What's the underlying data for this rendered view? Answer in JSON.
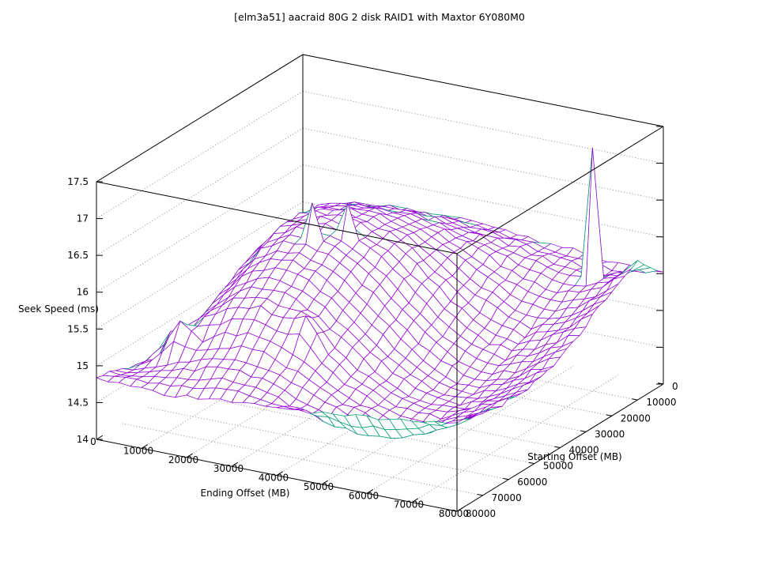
{
  "title": "[elm3a51] aacraid 80G 2 disk RAID1 with Maxtor 6Y080M0",
  "chart_data": {
    "type": "surface3d-wireframe",
    "title": "[elm3a51] aacraid 80G 2 disk RAID1 with Maxtor 6Y080M0",
    "xlabel": "Ending Offset (MB)",
    "ylabel": "Starting Offset (MB)",
    "zlabel": "Seek Speed (ms)",
    "xlim": [
      0,
      80000
    ],
    "ylim": [
      0,
      80000
    ],
    "zlim": [
      14,
      17.5
    ],
    "x_ticks": [
      0,
      10000,
      20000,
      30000,
      40000,
      50000,
      60000,
      70000,
      80000
    ],
    "y_ticks": [
      0,
      10000,
      20000,
      30000,
      40000,
      50000,
      60000,
      70000,
      80000
    ],
    "z_ticks": [
      14,
      14.5,
      15,
      15.5,
      16,
      16.5,
      17,
      17.5
    ],
    "grid": "dotted",
    "hidden3d": true,
    "surface_color": "#9400d3",
    "underside_color": "#009e73",
    "x_values": [
      0,
      5000,
      10000,
      15000,
      20000,
      25000,
      30000,
      35000,
      40000,
      45000,
      50000,
      55000,
      60000,
      65000,
      70000,
      75000,
      80000
    ],
    "y_values": [
      0,
      5000,
      10000,
      15000,
      20000,
      25000,
      30000,
      35000,
      40000,
      45000,
      50000,
      55000,
      60000,
      65000,
      70000,
      75000,
      80000
    ],
    "z_rows_by_y": [
      [
        14.05,
        14.85,
        15.3,
        15.5,
        15.6,
        15.65,
        15.7,
        15.7,
        15.68,
        15.65,
        15.62,
        15.6,
        15.58,
        15.55,
        15.52,
        15.5,
        15.5
      ],
      [
        14.08,
        15.0,
        15.45,
        15.65,
        15.75,
        15.8,
        15.82,
        15.8,
        15.76,
        15.72,
        15.68,
        15.62,
        15.58,
        15.52,
        15.48,
        15.55,
        15.7
      ],
      [
        14.1,
        15.1,
        15.6,
        15.8,
        15.9,
        15.95,
        15.95,
        15.92,
        15.86,
        15.8,
        15.72,
        15.64,
        15.56,
        15.5,
        17.3,
        15.6,
        15.88
      ],
      [
        14.12,
        15.15,
        15.7,
        15.95,
        16.05,
        16.08,
        16.06,
        16.0,
        15.92,
        15.82,
        15.68,
        15.55,
        15.45,
        15.4,
        15.45,
        15.58,
        15.82
      ],
      [
        14.15,
        15.18,
        15.78,
        16.05,
        16.15,
        16.18,
        16.15,
        16.06,
        15.95,
        15.8,
        15.6,
        15.45,
        15.32,
        15.25,
        15.32,
        15.48,
        15.7
      ],
      [
        14.18,
        15.16,
        15.8,
        16.1,
        16.22,
        16.25,
        16.2,
        16.1,
        15.95,
        15.75,
        15.52,
        15.35,
        15.2,
        15.12,
        15.22,
        15.38,
        15.58
      ],
      [
        14.2,
        15.12,
        15.78,
        16.1,
        16.25,
        16.28,
        16.22,
        16.1,
        15.92,
        15.68,
        15.42,
        15.22,
        15.08,
        15.02,
        15.12,
        15.28,
        15.45
      ],
      [
        14.25,
        15.08,
        15.72,
        16.08,
        16.22,
        16.26,
        16.6,
        16.05,
        15.85,
        15.58,
        15.3,
        15.1,
        14.96,
        14.92,
        15.02,
        15.18,
        15.32
      ],
      [
        14.3,
        15.02,
        15.64,
        16.0,
        16.18,
        16.65,
        16.12,
        15.95,
        15.72,
        15.45,
        15.18,
        14.98,
        14.86,
        14.82,
        14.92,
        15.08,
        15.22
      ],
      [
        14.38,
        14.96,
        15.54,
        15.88,
        16.05,
        16.08,
        16.0,
        15.82,
        15.58,
        15.32,
        15.05,
        14.88,
        14.76,
        14.75,
        14.85,
        15.0,
        15.15
      ],
      [
        14.45,
        14.92,
        15.44,
        15.74,
        15.92,
        15.95,
        15.86,
        15.68,
        15.44,
        15.18,
        14.95,
        14.8,
        14.7,
        14.7,
        14.8,
        14.95,
        15.1
      ],
      [
        14.52,
        14.88,
        15.34,
        15.6,
        15.78,
        15.82,
        15.72,
        15.54,
        15.32,
        15.08,
        14.88,
        14.74,
        14.66,
        14.67,
        14.77,
        14.92,
        15.07
      ],
      [
        14.6,
        15.1,
        15.24,
        15.48,
        15.62,
        15.66,
        15.58,
        15.68,
        15.2,
        14.98,
        14.82,
        14.7,
        14.64,
        14.66,
        14.77,
        14.93,
        15.08
      ],
      [
        14.68,
        14.86,
        15.42,
        15.2,
        15.35,
        15.42,
        15.38,
        15.25,
        15.08,
        14.9,
        14.77,
        14.66,
        14.61,
        14.64,
        14.76,
        14.92,
        15.06
      ],
      [
        14.75,
        14.82,
        14.92,
        15.02,
        15.12,
        15.18,
        15.15,
        15.06,
        14.95,
        14.84,
        14.74,
        14.66,
        14.62,
        14.66,
        14.78,
        14.94,
        15.1
      ],
      [
        14.8,
        14.82,
        14.86,
        14.91,
        14.97,
        15.01,
        15.0,
        14.94,
        14.86,
        14.78,
        14.7,
        14.65,
        14.64,
        14.7,
        14.83,
        14.99,
        15.14
      ],
      [
        14.85,
        14.83,
        14.81,
        14.8,
        14.82,
        14.85,
        14.88,
        14.9,
        14.92,
        14.95,
        14.97,
        15.0,
        15.03,
        15.06,
        15.1,
        15.15,
        15.2
      ]
    ]
  },
  "style": {
    "border_color": "#000000",
    "grid_color": "#8c8c8c",
    "text_color": "#000000"
  }
}
